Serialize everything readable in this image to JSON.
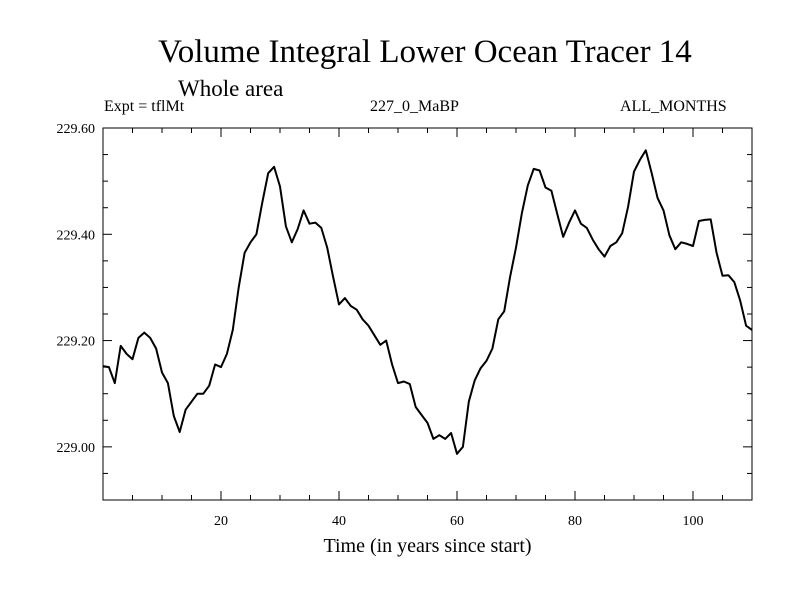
{
  "chart_data": {
    "type": "line",
    "title": "Volume Integral Lower Ocean Tracer 14",
    "subtitle": "Whole area",
    "experiment": "Expt = tflMt",
    "period": "227_0_MaBP",
    "months": "ALL_MONTHS",
    "xlabel": "Time (in years since start)",
    "ylabel": "",
    "xlim": [
      0,
      110
    ],
    "ylim": [
      228.9,
      229.6
    ],
    "xticks": [
      20,
      40,
      60,
      80,
      100
    ],
    "yticks": [
      229.0,
      229.2,
      229.4,
      229.6
    ],
    "ytick_labels": [
      "229.00",
      "229.20",
      "229.40",
      "229.60"
    ],
    "series": [
      {
        "name": "Tracer 14",
        "x": [
          0,
          1,
          2,
          3,
          4,
          5,
          6,
          7,
          8,
          9,
          10,
          11,
          12,
          13,
          14,
          15,
          16,
          17,
          18,
          19,
          20,
          21,
          22,
          23,
          24,
          25,
          26,
          27,
          28,
          29,
          30,
          31,
          32,
          33,
          34,
          35,
          36,
          37,
          38,
          39,
          40,
          41,
          42,
          43,
          44,
          45,
          46,
          47,
          48,
          49,
          50,
          51,
          52,
          53,
          54,
          55,
          56,
          57,
          58,
          59,
          60,
          61,
          62,
          63,
          64,
          65,
          66,
          67,
          68,
          69,
          70,
          71,
          72,
          73,
          74,
          75,
          76,
          77,
          78,
          79,
          80,
          81,
          82,
          83,
          84,
          85,
          86,
          87,
          88,
          89,
          90,
          91,
          92,
          93,
          94,
          95,
          96,
          97,
          98,
          99,
          100,
          101,
          102,
          103,
          104,
          105,
          106,
          107,
          108,
          109,
          110
        ],
        "y": [
          229.152,
          229.15,
          229.12,
          229.19,
          229.175,
          229.165,
          229.205,
          229.215,
          229.205,
          229.185,
          229.14,
          229.12,
          229.058,
          229.028,
          229.07,
          229.085,
          229.1,
          229.1,
          229.115,
          229.155,
          229.15,
          229.175,
          229.22,
          229.3,
          229.365,
          229.385,
          229.4,
          229.46,
          229.515,
          229.527,
          229.49,
          229.415,
          229.385,
          229.41,
          229.445,
          229.42,
          229.422,
          229.412,
          229.375,
          229.32,
          229.268,
          229.28,
          229.265,
          229.258,
          229.24,
          229.228,
          229.21,
          229.192,
          229.2,
          229.155,
          229.12,
          229.123,
          229.118,
          229.075,
          229.06,
          229.045,
          229.015,
          229.022,
          229.015,
          229.026,
          228.987,
          229.0,
          229.085,
          229.125,
          229.148,
          229.162,
          229.185,
          229.24,
          229.255,
          229.32,
          229.375,
          229.44,
          229.492,
          229.523,
          229.52,
          229.488,
          229.482,
          229.438,
          229.395,
          229.422,
          229.445,
          229.42,
          229.412,
          229.39,
          229.372,
          229.358,
          229.378,
          229.385,
          229.402,
          229.452,
          229.518,
          229.54,
          229.558,
          229.515,
          229.468,
          229.445,
          229.398,
          229.372,
          229.385,
          229.382,
          229.378,
          229.425,
          229.427,
          229.428,
          229.365,
          229.322,
          229.323,
          229.31,
          229.275,
          229.228,
          229.22
        ]
      }
    ]
  }
}
